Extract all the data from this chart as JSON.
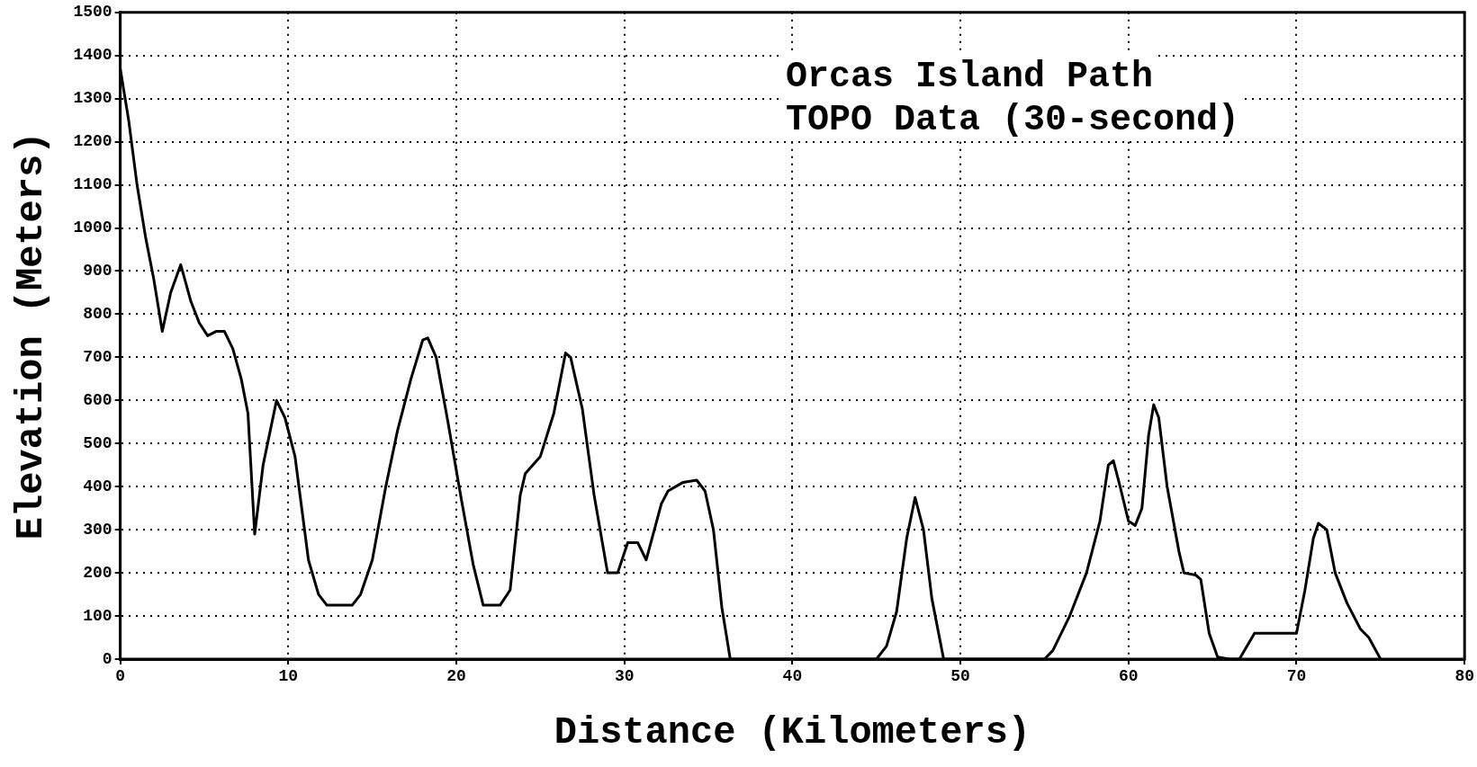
{
  "chart_data": {
    "type": "line",
    "title": "Orcas Island Path",
    "subtitle": "TOPO Data (30-second)",
    "xlabel": "Distance (Kilometers)",
    "ylabel": "Elevation (Meters)",
    "xlim": [
      0,
      80
    ],
    "xticks": [
      0,
      10,
      20,
      30,
      40,
      50,
      60,
      70,
      80
    ],
    "ylim": [
      0,
      1500
    ],
    "yticks": [
      0,
      100,
      200,
      300,
      400,
      500,
      600,
      700,
      800,
      900,
      1000,
      1100,
      1200,
      1300,
      1400,
      1500
    ],
    "grid": true,
    "legend": false,
    "marker": "none",
    "line_style": "solid",
    "series": [
      {
        "color": "#000000",
        "x": [
          0,
          0.5,
          1,
          1.5,
          2,
          2.5,
          3,
          3.6,
          4.2,
          4.7,
          5.2,
          5.7,
          6.2,
          6.7,
          7.2,
          7.6,
          8,
          8.5,
          9.3,
          9.8,
          10.4,
          10.8,
          11.2,
          11.8,
          12.3,
          13.8,
          14.3,
          15,
          15.8,
          16.5,
          17.3,
          18,
          18.3,
          18.8,
          19.5,
          20.3,
          21,
          21.6,
          22.6,
          23.2,
          23.8,
          24.1,
          25,
          25.8,
          26.5,
          26.8,
          27.5,
          28.2,
          29,
          29.6,
          30.2,
          30.8,
          31.3,
          32.2,
          32.6,
          33.5,
          34.3,
          34.8,
          35.3,
          35.8,
          36.3,
          45,
          45.6,
          46.2,
          46.8,
          47.3,
          47.8,
          48.3,
          49,
          55,
          55.5,
          56.5,
          57.5,
          58.3,
          58.8,
          59.1,
          59.5,
          60,
          60.4,
          60.8,
          61.2,
          61.5,
          61.8,
          62.3,
          63,
          63.3,
          64,
          64.3,
          64.8,
          65.3,
          66,
          66.6,
          67.5,
          70,
          70.5,
          71,
          71.3,
          71.8,
          72.3,
          73,
          73.8,
          74.3,
          75
        ],
        "values": [
          1370,
          1250,
          1100,
          980,
          880,
          760,
          850,
          915,
          830,
          780,
          750,
          760,
          760,
          720,
          650,
          570,
          290,
          450,
          600,
          560,
          470,
          350,
          230,
          150,
          125,
          125,
          150,
          230,
          400,
          530,
          650,
          740,
          745,
          700,
          550,
          370,
          220,
          125,
          125,
          160,
          380,
          430,
          470,
          570,
          710,
          700,
          580,
          380,
          200,
          200,
          270,
          270,
          230,
          360,
          390,
          410,
          415,
          390,
          300,
          120,
          0,
          0,
          30,
          110,
          280,
          375,
          300,
          140,
          0,
          0,
          20,
          100,
          200,
          320,
          450,
          460,
          400,
          320,
          310,
          350,
          520,
          590,
          560,
          400,
          250,
          200,
          195,
          185,
          60,
          5,
          0,
          0,
          60,
          60,
          160,
          280,
          315,
          300,
          200,
          130,
          70,
          50,
          0
        ]
      }
    ]
  }
}
